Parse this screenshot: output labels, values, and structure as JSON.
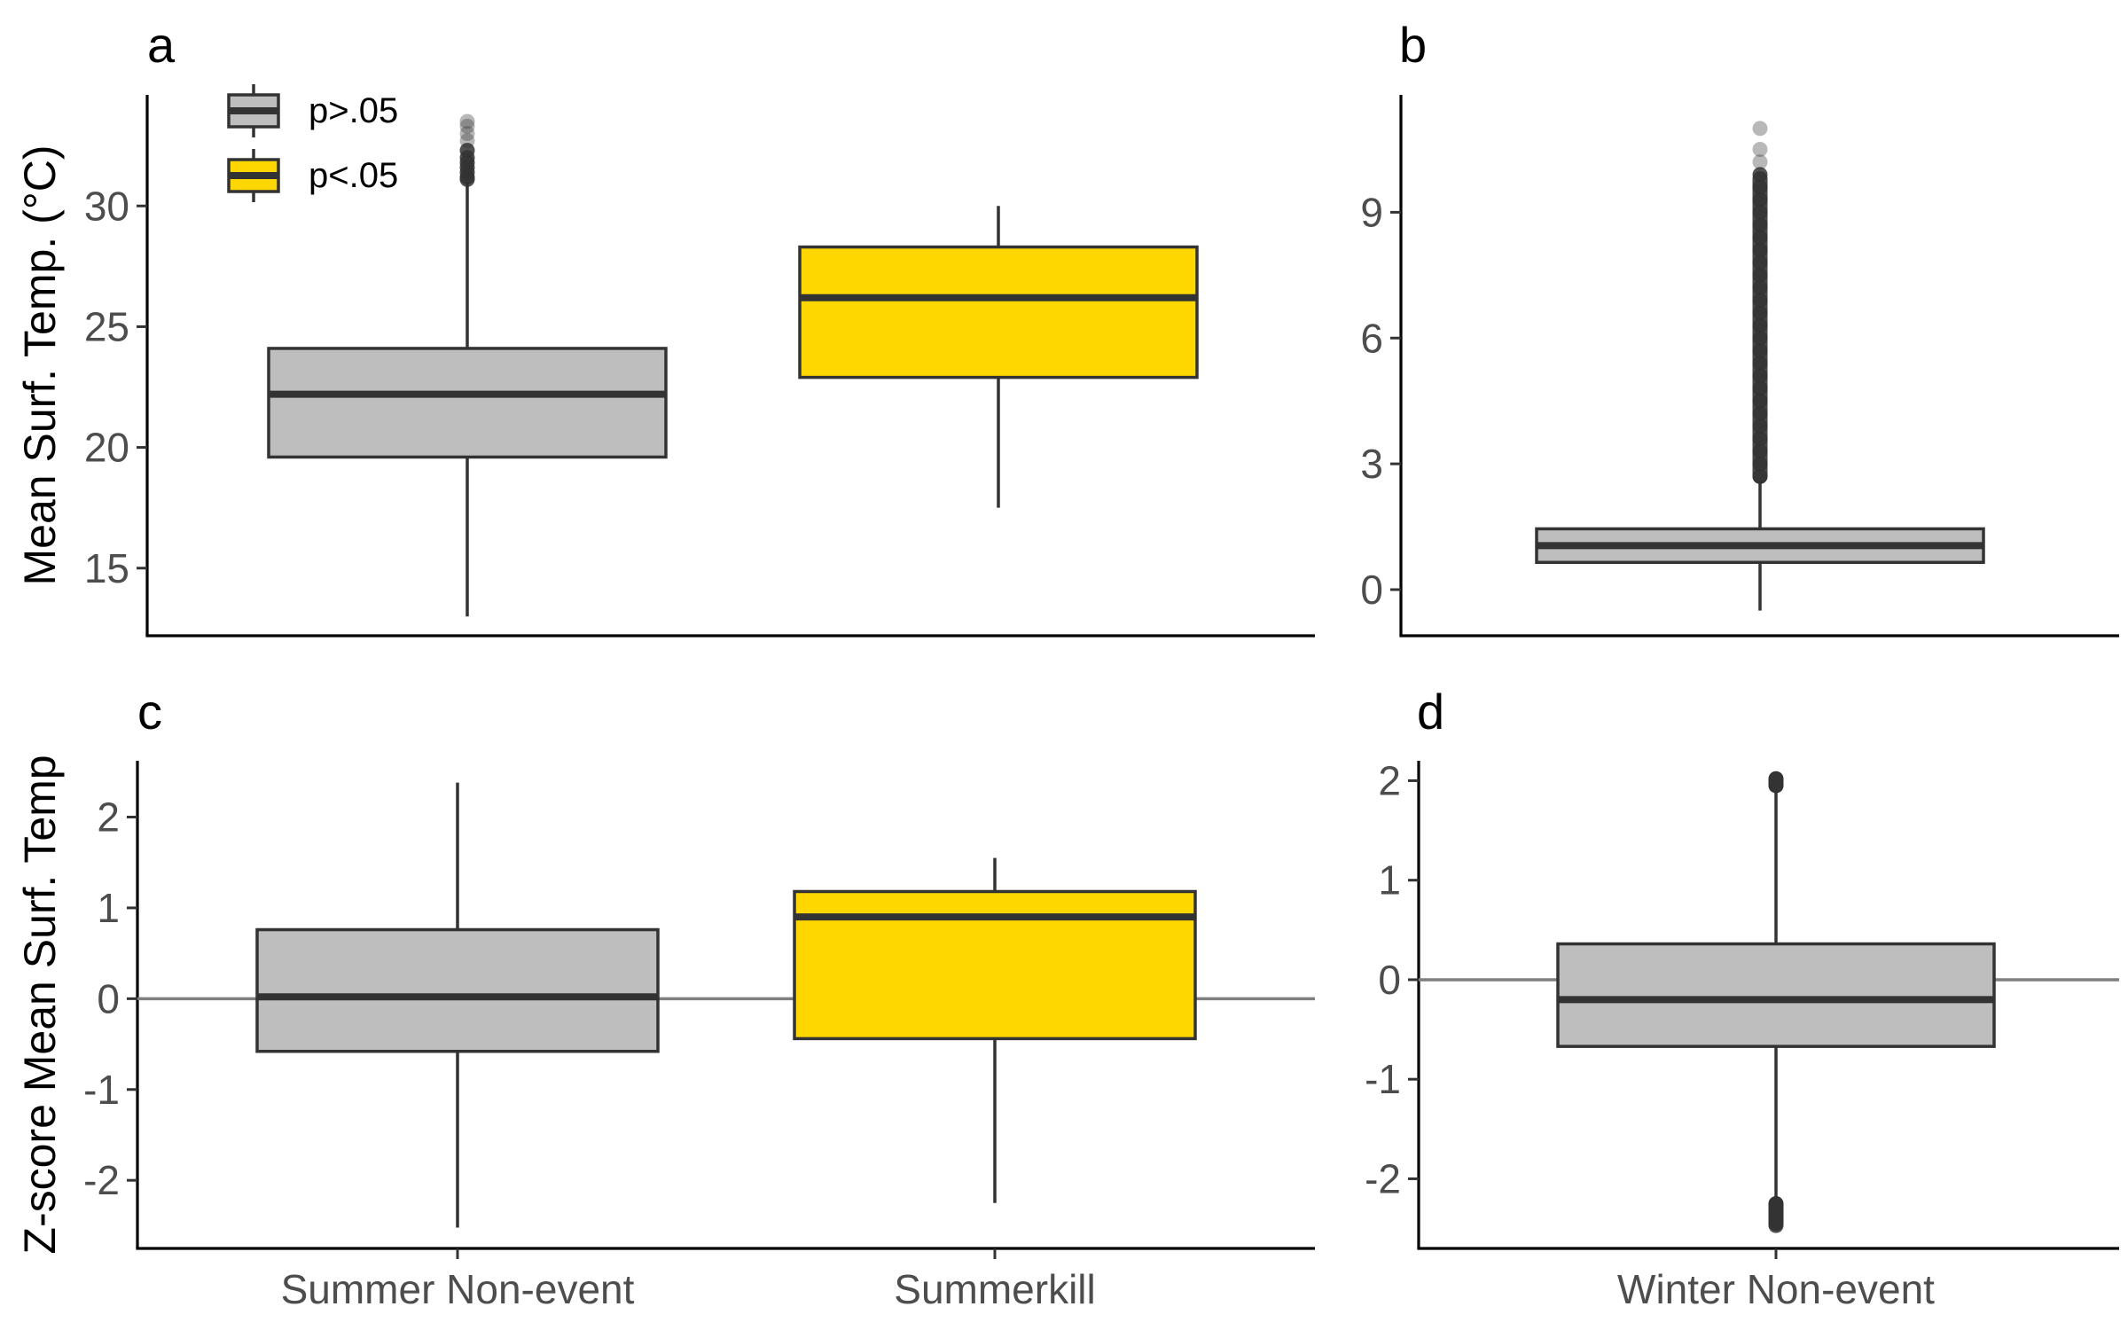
{
  "colors": {
    "not_significant": "#bebebe",
    "significant": "#ffd700",
    "box_outline": "#333333",
    "reference_line": "#7f7f7f"
  },
  "legend": {
    "entries": [
      {
        "label": "p>.05",
        "color": "#bebebe"
      },
      {
        "label": "p<.05",
        "color": "#ffd700"
      }
    ],
    "placement": "top-left of panel a"
  },
  "row_titles": {
    "top": "Mean Surf. Temp. (°C)",
    "bottom": "Z-score Mean Surf. Temp"
  },
  "chart_data": [
    {
      "panel": "a",
      "type": "box",
      "ylabel": "Mean Surf. Temp. (°C)",
      "ylim": [
        12.2,
        34.6
      ],
      "yticks": [
        15,
        20,
        25,
        30
      ],
      "categories": [
        "Summer Non-event",
        "Summerkill"
      ],
      "boxes": [
        {
          "category": "Summer Non-event",
          "fill": "#bebebe",
          "min": 13.0,
          "q1": 19.6,
          "median": 22.2,
          "q3": 24.1,
          "max": 31.0,
          "outliers": [
            31.1,
            31.2,
            31.4,
            31.6,
            31.8,
            32.0,
            32.3,
            32.7,
            33.0,
            33.3,
            33.5
          ]
        },
        {
          "category": "Summerkill",
          "fill": "#ffd700",
          "min": 17.5,
          "q1": 22.9,
          "median": 26.2,
          "q3": 28.3,
          "max": 30.0,
          "outliers": []
        }
      ],
      "reference_line": null
    },
    {
      "panel": "b",
      "type": "box",
      "ylim": [
        -1.1,
        11.8
      ],
      "yticks": [
        0,
        3,
        6,
        9
      ],
      "categories": [
        "Winter Non-event"
      ],
      "boxes": [
        {
          "category": "Winter Non-event",
          "fill": "#bebebe",
          "min": -0.5,
          "q1": 0.65,
          "median": 1.05,
          "q3": 1.45,
          "max": 2.6,
          "outliers": [
            2.7,
            3.0,
            3.3,
            3.6,
            3.9,
            4.2,
            4.5,
            4.8,
            5.1,
            5.4,
            5.7,
            6.0,
            6.3,
            6.6,
            6.9,
            7.2,
            7.5,
            7.8,
            8.1,
            8.4,
            8.7,
            9.0,
            9.3,
            9.6,
            9.9,
            10.2,
            10.5,
            11.0
          ]
        }
      ],
      "reference_line": null
    },
    {
      "panel": "c",
      "type": "box",
      "ylabel": "Z-score Mean Surf. Temp",
      "ylim": [
        -2.75,
        2.62
      ],
      "yticks": [
        -2,
        -1,
        0,
        1,
        2
      ],
      "categories": [
        "Summer Non-event",
        "Summerkill"
      ],
      "boxes": [
        {
          "category": "Summer Non-event",
          "fill": "#bebebe",
          "min": -2.52,
          "q1": -0.58,
          "median": 0.02,
          "q3": 0.76,
          "max": 2.38,
          "outliers": []
        },
        {
          "category": "Summerkill",
          "fill": "#ffd700",
          "min": -2.25,
          "q1": -0.44,
          "median": 0.9,
          "q3": 1.18,
          "max": 1.55,
          "outliers": []
        }
      ],
      "reference_line": 0
    },
    {
      "panel": "d",
      "type": "box",
      "ylim": [
        -2.7,
        2.2
      ],
      "yticks": [
        -2,
        -1,
        0,
        1,
        2
      ],
      "categories": [
        "Winter Non-event"
      ],
      "boxes": [
        {
          "category": "Winter Non-event",
          "fill": "#bebebe",
          "min": -2.22,
          "q1": -0.67,
          "median": -0.2,
          "q3": 0.36,
          "max": 1.92,
          "outliers": [
            1.96,
            2.0,
            -2.27,
            -2.32,
            -2.37,
            -2.42,
            -2.47
          ]
        }
      ],
      "reference_line": 0
    }
  ]
}
